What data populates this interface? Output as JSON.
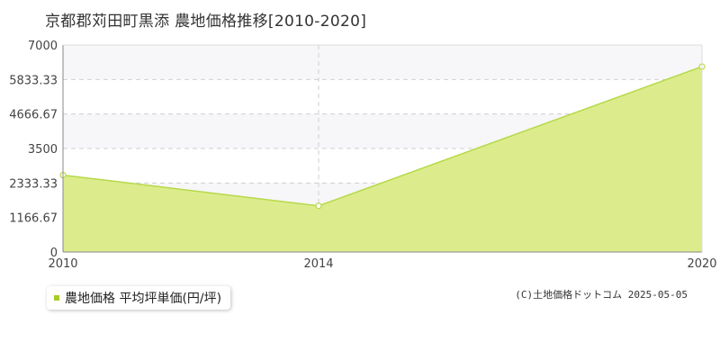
{
  "title": "京都郡苅田町黒添 農地価格推移[2010-2020]",
  "legend_label": "農地価格 平均坪単価(円/坪)",
  "copyright": "(C)土地価格ドットコム 2025-05-05",
  "colors": {
    "fill": "#dcec8c",
    "line": "#b6d94a",
    "marker": "#a8cc28",
    "band": "#f7f6f9",
    "grid": "#cfcfcf"
  },
  "chart_data": {
    "type": "area",
    "title": "京都郡苅田町黒添 農地価格推移[2010-2020]",
    "xlabel": "",
    "ylabel": "",
    "x": [
      2010,
      2014,
      2020
    ],
    "series": [
      {
        "name": "農地価格 平均坪単価(円/坪)",
        "values": [
          2600,
          1560,
          6270
        ]
      }
    ],
    "xlim": [
      2010,
      2020
    ],
    "ylim": [
      0,
      7000
    ],
    "xticks": [
      "2010",
      "2014",
      "2020"
    ],
    "yticks": [
      "0",
      "1166.67",
      "2333.33",
      "3500",
      "4666.67",
      "5833.33",
      "7000"
    ],
    "grid": true,
    "legend": "bottom-left"
  }
}
